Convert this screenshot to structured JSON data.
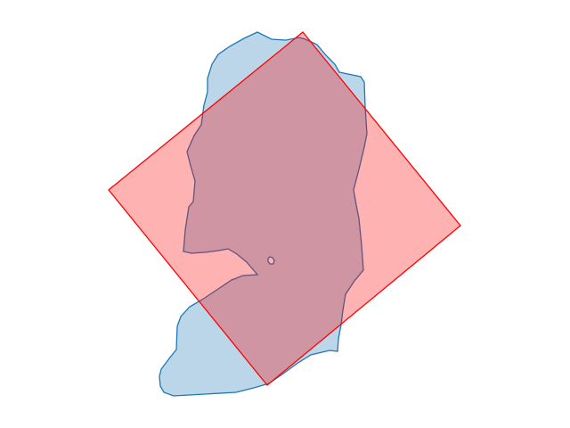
{
  "colors": {
    "background": "#ffffff",
    "region_a_fill": "#1f77b4",
    "region_a_stroke": "#1f77b4",
    "region_b_fill": "#ff0000",
    "region_b_stroke": "#ff0000"
  },
  "shapes": [
    {
      "id": "blue-region",
      "kind": "irregular polygon with small hole",
      "fill_opacity": 0.3,
      "stroke_color": "#1f77b4"
    },
    {
      "id": "red-square",
      "kind": "rotated square",
      "fill_opacity": 0.3,
      "stroke_color": "#ff0000"
    }
  ]
}
